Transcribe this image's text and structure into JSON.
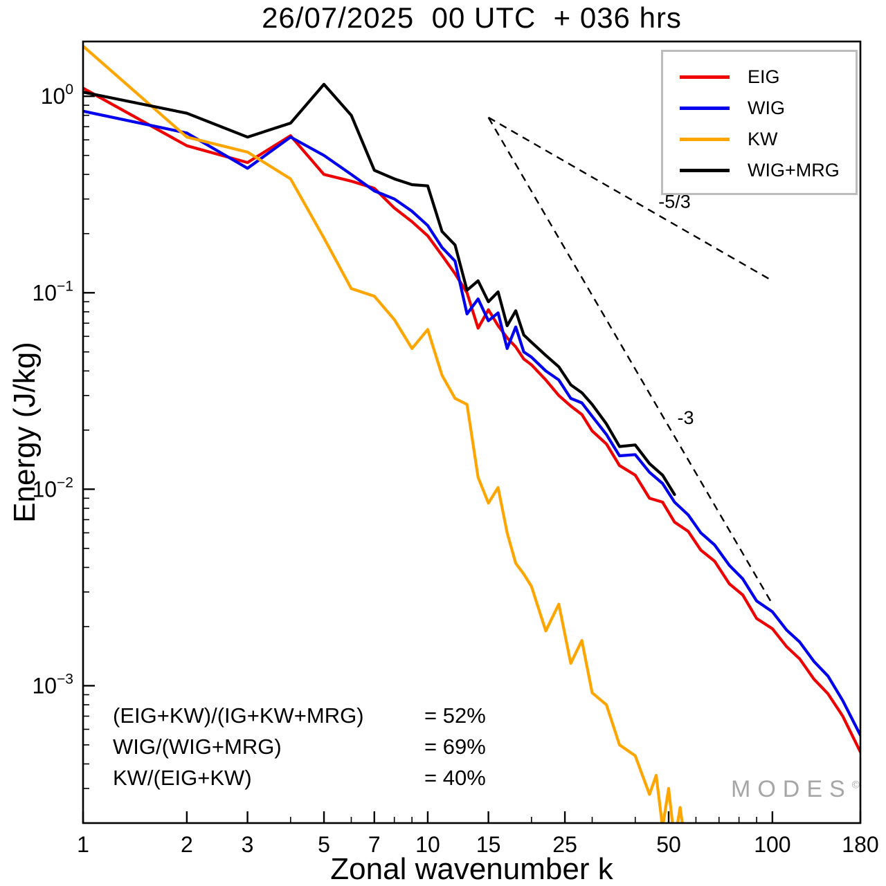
{
  "title": "26/07/2025  00 UTC  + 036 hrs",
  "watermark": {
    "text": "MODES",
    "symbol": "©"
  },
  "annotations": {
    "ratios": [
      {
        "label": "(EIG+KW)/(IG+KW+MRG)",
        "value": "= 52%"
      },
      {
        "label": "WIG/(WIG+MRG)",
        "value": "= 69%"
      },
      {
        "label": "KW/(EIG+KW)",
        "value": "= 40%"
      }
    ]
  },
  "chart_data": {
    "type": "line",
    "title": "26/07/2025  00 UTC  + 036 hrs",
    "xlabel": "Zonal wavenumber k",
    "ylabel": "Energy (J/kg)",
    "x_scale": "log",
    "y_scale": "log",
    "xlim": [
      1,
      180
    ],
    "ylim": [
      0.0002,
      1.9
    ],
    "grid": false,
    "legend_position": "top-right",
    "x_major_ticks": [
      1,
      2,
      3,
      5,
      7,
      10,
      15,
      25,
      50,
      100,
      180
    ],
    "y_major_ticks": [
      1,
      0.1,
      0.01,
      0.001
    ],
    "series": [
      {
        "name": "EIG",
        "color": "#ee0000",
        "x": [
          1,
          2,
          3,
          4,
          5,
          6,
          7,
          8,
          9,
          10,
          11,
          12,
          13,
          14,
          15,
          16,
          17,
          18,
          19,
          20,
          22,
          24,
          26,
          28,
          30,
          33,
          36,
          40,
          44,
          48,
          52,
          57,
          62,
          68,
          75,
          82,
          90,
          100,
          110,
          120,
          132,
          145,
          160,
          180
        ],
        "y": [
          1.1,
          0.56,
          0.46,
          0.63,
          0.4,
          0.37,
          0.34,
          0.27,
          0.23,
          0.195,
          0.155,
          0.125,
          0.1,
          0.066,
          0.082,
          0.068,
          0.059,
          0.053,
          0.046,
          0.043,
          0.036,
          0.03,
          0.0265,
          0.024,
          0.0198,
          0.017,
          0.0132,
          0.0118,
          0.009,
          0.0086,
          0.0068,
          0.0061,
          0.0049,
          0.0043,
          0.0033,
          0.0029,
          0.0022,
          0.00195,
          0.00158,
          0.00137,
          0.00108,
          0.00091,
          0.0007,
          0.00046
        ]
      },
      {
        "name": "WIG",
        "color": "#0000ee",
        "x": [
          1,
          2,
          3,
          4,
          5,
          6,
          7,
          8,
          9,
          10,
          11,
          12,
          13,
          14,
          15,
          16,
          17,
          18,
          19,
          20,
          22,
          24,
          26,
          28,
          30,
          33,
          36,
          40,
          44,
          48,
          52,
          57,
          62,
          68,
          75,
          82,
          90,
          100,
          110,
          120,
          132,
          145,
          160,
          180
        ],
        "y": [
          0.84,
          0.65,
          0.43,
          0.62,
          0.5,
          0.4,
          0.33,
          0.3,
          0.26,
          0.22,
          0.17,
          0.145,
          0.078,
          0.093,
          0.072,
          0.079,
          0.052,
          0.067,
          0.05,
          0.047,
          0.04,
          0.036,
          0.029,
          0.0275,
          0.0235,
          0.019,
          0.0148,
          0.015,
          0.0122,
          0.0107,
          0.0086,
          0.0074,
          0.006,
          0.0052,
          0.0041,
          0.0035,
          0.0027,
          0.00238,
          0.00192,
          0.00167,
          0.00133,
          0.00112,
          0.00084,
          0.00056
        ]
      },
      {
        "name": "KW",
        "color": "#ffa500",
        "x": [
          1,
          2,
          3,
          4,
          5,
          6,
          7,
          8,
          9,
          10,
          11,
          12,
          13,
          14,
          15,
          16,
          17,
          18,
          19,
          20,
          22,
          24,
          26,
          28,
          30,
          33,
          36,
          40,
          44,
          46,
          48,
          50,
          52,
          54,
          56
        ],
        "y": [
          1.8,
          0.62,
          0.52,
          0.38,
          0.19,
          0.105,
          0.096,
          0.073,
          0.052,
          0.065,
          0.038,
          0.029,
          0.027,
          0.0115,
          0.0085,
          0.0102,
          0.006,
          0.0042,
          0.0037,
          0.0032,
          0.0019,
          0.0026,
          0.0013,
          0.0017,
          0.00092,
          0.0008,
          0.0005,
          0.00044,
          0.00028,
          0.00035,
          0.00019,
          0.0003,
          0.00016,
          0.00024,
          0.00015
        ]
      },
      {
        "name": "WIG+MRG",
        "color": "#000000",
        "x": [
          1,
          2,
          3,
          4,
          5,
          6,
          7,
          8,
          9,
          10,
          11,
          12,
          13,
          14,
          15,
          16,
          17,
          18,
          19,
          20,
          22,
          24,
          26,
          28,
          30,
          33,
          36,
          40,
          44,
          48,
          52
        ],
        "y": [
          1.05,
          0.82,
          0.62,
          0.73,
          1.15,
          0.8,
          0.42,
          0.38,
          0.355,
          0.35,
          0.205,
          0.175,
          0.103,
          0.115,
          0.09,
          0.101,
          0.068,
          0.081,
          0.061,
          0.056,
          0.048,
          0.042,
          0.034,
          0.031,
          0.027,
          0.0215,
          0.0165,
          0.0168,
          0.0135,
          0.0118,
          0.0094
        ]
      }
    ],
    "reference_lines": [
      {
        "label": "-5/3",
        "style": "dashed",
        "from": [
          15,
          0.78
        ],
        "to": [
          100,
          0.115
        ],
        "label_pos": [
          52,
          0.27
        ]
      },
      {
        "label": "-3",
        "style": "dashed",
        "from": [
          15,
          0.78
        ],
        "to": [
          100,
          0.0026
        ],
        "label_pos": [
          56,
          0.0215
        ]
      }
    ]
  }
}
